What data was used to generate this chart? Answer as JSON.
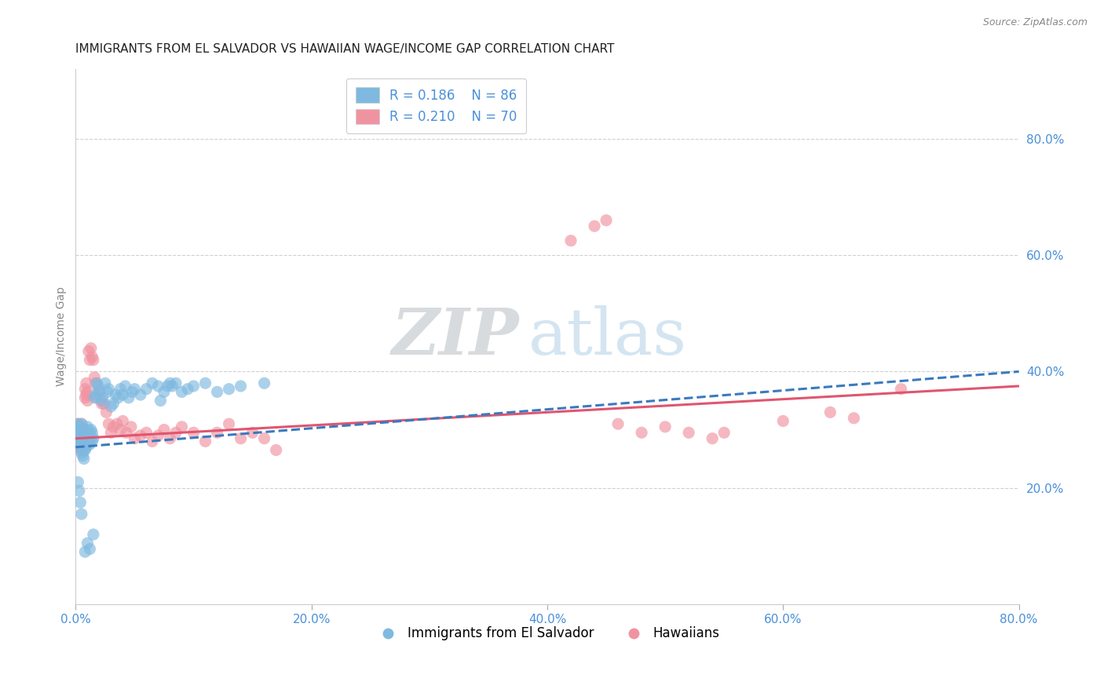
{
  "title": "IMMIGRANTS FROM EL SALVADOR VS HAWAIIAN WAGE/INCOME GAP CORRELATION CHART",
  "source": "Source: ZipAtlas.com",
  "ylabel": "Wage/Income Gap",
  "xlim": [
    0.0,
    0.8
  ],
  "ylim": [
    0.0,
    0.92
  ],
  "xticks": [
    0.0,
    0.2,
    0.4,
    0.6,
    0.8
  ],
  "yticks_right": [
    0.2,
    0.4,
    0.6,
    0.8
  ],
  "ytick_labels_right": [
    "20.0%",
    "40.0%",
    "60.0%",
    "80.0%"
  ],
  "xtick_labels": [
    "0.0%",
    "20.0%",
    "40.0%",
    "60.0%",
    "80.0%"
  ],
  "color_blue": "#7fb9e0",
  "color_pink": "#f093a0",
  "color_blue_line": "#3a7abf",
  "color_pink_line": "#e05570",
  "color_axis_labels": "#4a90d9",
  "legend_R1": "R = 0.186",
  "legend_N1": "N = 86",
  "legend_R2": "R = 0.210",
  "legend_N2": "N = 70",
  "label1": "Immigrants from El Salvador",
  "label2": "Hawaiians",
  "watermark_zip": "ZIP",
  "watermark_atlas": "atlas",
  "background_color": "#ffffff",
  "grid_color": "#d0d0d0",
  "title_fontsize": 11,
  "axis_label_fontsize": 10,
  "tick_fontsize": 11,
  "blue_scatter_x": [
    0.001,
    0.002,
    0.002,
    0.003,
    0.003,
    0.003,
    0.004,
    0.004,
    0.004,
    0.004,
    0.005,
    0.005,
    0.005,
    0.005,
    0.006,
    0.006,
    0.006,
    0.006,
    0.007,
    0.007,
    0.007,
    0.007,
    0.008,
    0.008,
    0.008,
    0.009,
    0.009,
    0.009,
    0.01,
    0.01,
    0.01,
    0.011,
    0.011,
    0.012,
    0.012,
    0.013,
    0.013,
    0.014,
    0.014,
    0.015,
    0.016,
    0.017,
    0.018,
    0.019,
    0.02,
    0.022,
    0.023,
    0.025,
    0.027,
    0.028,
    0.03,
    0.032,
    0.034,
    0.036,
    0.038,
    0.04,
    0.042,
    0.045,
    0.048,
    0.05,
    0.055,
    0.06,
    0.065,
    0.07,
    0.072,
    0.075,
    0.078,
    0.08,
    0.082,
    0.085,
    0.09,
    0.095,
    0.1,
    0.11,
    0.12,
    0.13,
    0.14,
    0.16,
    0.002,
    0.003,
    0.004,
    0.005,
    0.008,
    0.01,
    0.012,
    0.015
  ],
  "blue_scatter_y": [
    0.295,
    0.285,
    0.31,
    0.275,
    0.29,
    0.305,
    0.27,
    0.28,
    0.295,
    0.305,
    0.26,
    0.275,
    0.29,
    0.31,
    0.255,
    0.27,
    0.285,
    0.3,
    0.25,
    0.265,
    0.28,
    0.3,
    0.265,
    0.28,
    0.295,
    0.27,
    0.285,
    0.3,
    0.275,
    0.29,
    0.305,
    0.28,
    0.295,
    0.275,
    0.295,
    0.285,
    0.3,
    0.28,
    0.295,
    0.285,
    0.355,
    0.36,
    0.38,
    0.375,
    0.365,
    0.35,
    0.355,
    0.38,
    0.365,
    0.37,
    0.34,
    0.345,
    0.36,
    0.355,
    0.37,
    0.36,
    0.375,
    0.355,
    0.365,
    0.37,
    0.36,
    0.37,
    0.38,
    0.375,
    0.35,
    0.365,
    0.375,
    0.38,
    0.375,
    0.38,
    0.365,
    0.37,
    0.375,
    0.38,
    0.365,
    0.37,
    0.375,
    0.38,
    0.21,
    0.195,
    0.175,
    0.155,
    0.09,
    0.105,
    0.095,
    0.12
  ],
  "pink_scatter_x": [
    0.001,
    0.002,
    0.002,
    0.003,
    0.003,
    0.004,
    0.004,
    0.005,
    0.005,
    0.005,
    0.006,
    0.006,
    0.007,
    0.007,
    0.008,
    0.008,
    0.009,
    0.009,
    0.01,
    0.01,
    0.011,
    0.012,
    0.013,
    0.014,
    0.015,
    0.016,
    0.017,
    0.018,
    0.02,
    0.022,
    0.024,
    0.026,
    0.028,
    0.03,
    0.032,
    0.035,
    0.038,
    0.04,
    0.043,
    0.047,
    0.05,
    0.055,
    0.06,
    0.065,
    0.07,
    0.075,
    0.08,
    0.085,
    0.09,
    0.1,
    0.11,
    0.12,
    0.13,
    0.14,
    0.15,
    0.16,
    0.17,
    0.42,
    0.44,
    0.45,
    0.46,
    0.48,
    0.5,
    0.52,
    0.54,
    0.55,
    0.6,
    0.64,
    0.66,
    0.7
  ],
  "pink_scatter_y": [
    0.295,
    0.28,
    0.31,
    0.27,
    0.295,
    0.265,
    0.29,
    0.275,
    0.295,
    0.31,
    0.285,
    0.3,
    0.27,
    0.29,
    0.355,
    0.37,
    0.38,
    0.36,
    0.35,
    0.365,
    0.435,
    0.42,
    0.44,
    0.425,
    0.42,
    0.39,
    0.38,
    0.355,
    0.365,
    0.345,
    0.345,
    0.33,
    0.31,
    0.295,
    0.305,
    0.31,
    0.3,
    0.315,
    0.295,
    0.305,
    0.285,
    0.29,
    0.295,
    0.28,
    0.29,
    0.3,
    0.285,
    0.295,
    0.305,
    0.295,
    0.28,
    0.295,
    0.31,
    0.285,
    0.295,
    0.285,
    0.265,
    0.625,
    0.65,
    0.66,
    0.31,
    0.295,
    0.305,
    0.295,
    0.285,
    0.295,
    0.315,
    0.33,
    0.32,
    0.37
  ],
  "blue_trend_x": [
    0.0,
    0.8
  ],
  "blue_trend_y": [
    0.27,
    0.4
  ],
  "pink_trend_x": [
    0.0,
    0.8
  ],
  "pink_trend_y": [
    0.285,
    0.375
  ]
}
